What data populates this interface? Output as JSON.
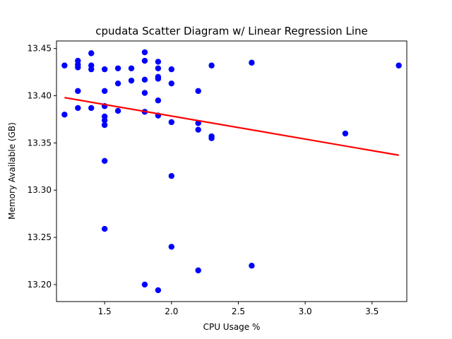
{
  "chart_data": {
    "type": "scatter",
    "title": "cpudata Scatter Diagram w/ Linear Regression Line",
    "xlabel": "CPU Usage %",
    "ylabel": "Memory Available (GB)",
    "xlim": [
      1.14,
      3.76
    ],
    "ylim": [
      13.182,
      13.458
    ],
    "xticks": [
      1.5,
      2.0,
      2.5,
      3.0,
      3.5
    ],
    "xtick_labels": [
      "1.5",
      "2.0",
      "2.5",
      "3.0",
      "3.5"
    ],
    "yticks": [
      13.2,
      13.25,
      13.3,
      13.35,
      13.4,
      13.45
    ],
    "ytick_labels": [
      "13.20",
      "13.25",
      "13.30",
      "13.35",
      "13.40",
      "13.45"
    ],
    "grid": false,
    "point_color": "#0000ff",
    "line_color": "#ff0000",
    "points": [
      {
        "x": 1.2,
        "y": 13.432
      },
      {
        "x": 1.2,
        "y": 13.38
      },
      {
        "x": 1.3,
        "y": 13.437
      },
      {
        "x": 1.3,
        "y": 13.433
      },
      {
        "x": 1.3,
        "y": 13.43
      },
      {
        "x": 1.3,
        "y": 13.405
      },
      {
        "x": 1.3,
        "y": 13.387
      },
      {
        "x": 1.4,
        "y": 13.445
      },
      {
        "x": 1.4,
        "y": 13.432
      },
      {
        "x": 1.4,
        "y": 13.428
      },
      {
        "x": 1.4,
        "y": 13.387
      },
      {
        "x": 1.5,
        "y": 13.428
      },
      {
        "x": 1.5,
        "y": 13.405
      },
      {
        "x": 1.5,
        "y": 13.389
      },
      {
        "x": 1.5,
        "y": 13.378
      },
      {
        "x": 1.5,
        "y": 13.374
      },
      {
        "x": 1.5,
        "y": 13.369
      },
      {
        "x": 1.5,
        "y": 13.331
      },
      {
        "x": 1.5,
        "y": 13.259
      },
      {
        "x": 1.6,
        "y": 13.429
      },
      {
        "x": 1.6,
        "y": 13.413
      },
      {
        "x": 1.6,
        "y": 13.384
      },
      {
        "x": 1.7,
        "y": 13.429
      },
      {
        "x": 1.7,
        "y": 13.416
      },
      {
        "x": 1.8,
        "y": 13.446
      },
      {
        "x": 1.8,
        "y": 13.437
      },
      {
        "x": 1.8,
        "y": 13.417
      },
      {
        "x": 1.8,
        "y": 13.403
      },
      {
        "x": 1.8,
        "y": 13.383
      },
      {
        "x": 1.8,
        "y": 13.2
      },
      {
        "x": 1.9,
        "y": 13.436
      },
      {
        "x": 1.9,
        "y": 13.429
      },
      {
        "x": 1.9,
        "y": 13.42
      },
      {
        "x": 1.9,
        "y": 13.418
      },
      {
        "x": 1.9,
        "y": 13.395
      },
      {
        "x": 1.9,
        "y": 13.379
      },
      {
        "x": 1.9,
        "y": 13.194
      },
      {
        "x": 2.0,
        "y": 13.428
      },
      {
        "x": 2.0,
        "y": 13.413
      },
      {
        "x": 2.0,
        "y": 13.372
      },
      {
        "x": 2.0,
        "y": 13.315
      },
      {
        "x": 2.0,
        "y": 13.24
      },
      {
        "x": 2.2,
        "y": 13.405
      },
      {
        "x": 2.2,
        "y": 13.371
      },
      {
        "x": 2.2,
        "y": 13.364
      },
      {
        "x": 2.2,
        "y": 13.215
      },
      {
        "x": 2.3,
        "y": 13.432
      },
      {
        "x": 2.3,
        "y": 13.357
      },
      {
        "x": 2.3,
        "y": 13.355
      },
      {
        "x": 2.6,
        "y": 13.435
      },
      {
        "x": 2.6,
        "y": 13.22
      },
      {
        "x": 3.3,
        "y": 13.36
      },
      {
        "x": 3.7,
        "y": 13.432
      }
    ],
    "regression_line": {
      "x": [
        1.2,
        3.7
      ],
      "y": [
        13.398,
        13.337
      ]
    }
  }
}
